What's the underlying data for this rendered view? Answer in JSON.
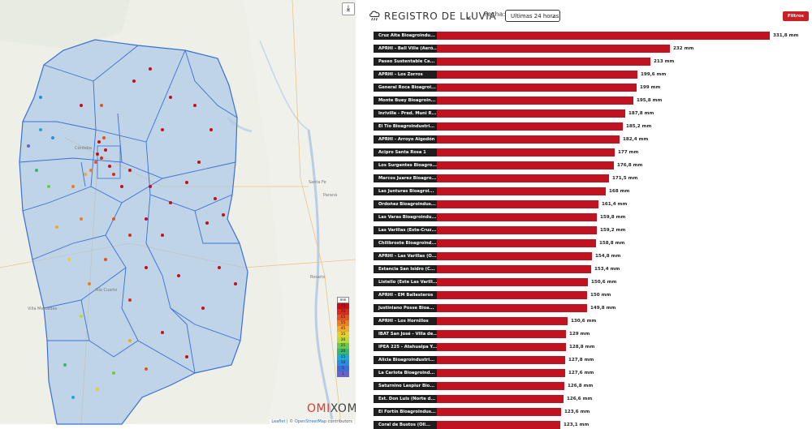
{
  "map": {
    "download_icon": "download-icon",
    "cities": [
      "Santa Fe",
      "Paraná",
      "Rosario",
      "Río Cuarto",
      "Villa Mercedes",
      "Córdoba"
    ],
    "legend": {
      "header": "mm",
      "items": [
        {
          "label": "75",
          "color": "#c40f1b"
        },
        {
          "label": "70",
          "color": "#d92a1e"
        },
        {
          "label": "65",
          "color": "#e6521f"
        },
        {
          "label": "55",
          "color": "#ef7b22"
        },
        {
          "label": "45",
          "color": "#f0a92a"
        },
        {
          "label": "35",
          "color": "#e6cf33"
        },
        {
          "label": "30",
          "color": "#b9d83a"
        },
        {
          "label": "25",
          "color": "#6fc84a"
        },
        {
          "label": "20",
          "color": "#36b76a"
        },
        {
          "label": "15",
          "color": "#1faad2"
        },
        {
          "label": "10",
          "color": "#2b8ee0"
        },
        {
          "label": "5",
          "color": "#3a6fd8"
        },
        {
          "label": "1",
          "color": "#6a63c9"
        }
      ]
    },
    "brand_prefix": "OMI",
    "brand_suffix": "XOM",
    "attribution_leaflet": "Leaflet",
    "attribution_sep": " | © ",
    "attribution_osm": "OpenStreetMap",
    "attribution_tail": " contributors"
  },
  "header": {
    "title": "REGISTRO DE LLUVIA",
    "fecha_label": "Fecha:",
    "fecha_value": "Ultimas 24 horas",
    "filtros_label": "Filtros"
  },
  "colors": {
    "bar": "#c1121f",
    "label_bg": "#1e1e1e",
    "accent": "#cc1f24"
  },
  "chart_data": {
    "type": "bar",
    "orientation": "horizontal",
    "unit": "mm",
    "categories": [
      "Cruz Alta Bioagroindu...",
      "APRHI - Bell Ville (Aeró...",
      "Paseo Sustentable Ca...",
      "APRHI - Los Zorros",
      "General Roca Bioagroi...",
      "Monte Buey Bioagroin...",
      "Inriville - Pred. Muni R...",
      "El Tío Bioagroindustri...",
      "APRHI - Arroyo Algodón",
      "Acipro Santa Rosa 1",
      "Los Surgentes Bioagro...",
      "Marcos Juarez Bioagro...",
      "Las Junturas Bioagroi...",
      "Ordoñez Bioagroindus...",
      "Las Varas Bioagroindu...",
      "Las Varillas (Este-Cruz...",
      "Chilibroste Bioagroind...",
      "APRHI - Las Varillas (O...",
      "Estancia San Isidro (C...",
      "Listello (Este Las Varill...",
      "APRHI - EM Ballesteros",
      "Justiniano Posse Bioa...",
      "APRHI - Los Hornillos",
      "IBAT San José - Villa de...",
      "IPEA 225 - Atahualpa Y...",
      "Alicia Bioagroindustri...",
      "La Carlota Bioagroind...",
      "Saturnino Laspiur Bio...",
      "Est. Don Luis (Norte d...",
      "El Fortín Bioagroindus...",
      "Coral de Bustos (Oll..."
    ],
    "values": [
      331.8,
      232,
      213,
      199.6,
      199,
      195.8,
      187.8,
      185.2,
      182.4,
      177,
      176.8,
      171.5,
      168,
      161.4,
      159.8,
      159.2,
      158.8,
      154.8,
      153.4,
      150.6,
      150,
      149.8,
      130.6,
      129,
      128.8,
      127.8,
      127.6,
      126.8,
      126.6,
      123.6,
      123.1
    ],
    "value_labels": [
      "331,8 mm",
      "232 mm",
      "213 mm",
      "199,6 mm",
      "199 mm",
      "195,8 mm",
      "187,8 mm",
      "185,2 mm",
      "182,4 mm",
      "177 mm",
      "176,8 mm",
      "171,5 mm",
      "168 mm",
      "161,4 mm",
      "159,8 mm",
      "159,2 mm",
      "158,8 mm",
      "154,8 mm",
      "153,4 mm",
      "150,6 mm",
      "150 mm",
      "149,8 mm",
      "130,6 mm",
      "129 mm",
      "128,8 mm",
      "127,8 mm",
      "127,6 mm",
      "126,8 mm",
      "126,6 mm",
      "123,6 mm",
      "123,1 mm"
    ]
  }
}
